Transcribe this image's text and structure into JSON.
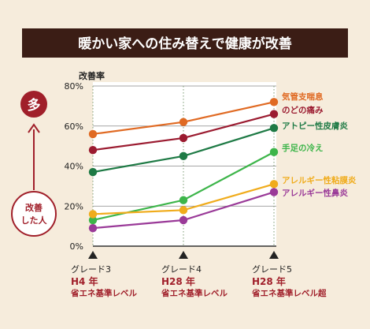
{
  "banner": {
    "title": "暖かい家への住み替えで健康が改善"
  },
  "side": {
    "top_label": "多",
    "bottom_label_1": "改善",
    "bottom_label_2": "した人"
  },
  "colors": {
    "banner_bg": "#3b1d15",
    "banner_text": "#ffffff",
    "side_accent": "#a01f2a",
    "background": "#f6ecdc",
    "plot_bg": "#ffffff",
    "label_red": "#a01f2a"
  },
  "chart_data": {
    "type": "line",
    "ylabel": "改善率",
    "ylim": [
      0,
      80
    ],
    "yticks": [
      "0%",
      "20%",
      "40%",
      "60%",
      "80%"
    ],
    "ytick_values": [
      0,
      20,
      40,
      60,
      80
    ],
    "grid": true,
    "categories": [
      {
        "grade": "グレード3",
        "year": "H4 年",
        "level": "省エネ基準レベル"
      },
      {
        "grade": "グレード4",
        "year": "H28 年",
        "level": "省エネ基準レベル"
      },
      {
        "grade": "グレード5",
        "year": "H28 年",
        "level": "省エネ基準レベル超"
      }
    ],
    "series": [
      {
        "name": "気管支喘息",
        "color": "#e06a23",
        "values": [
          56,
          62,
          72
        ]
      },
      {
        "name": "のどの痛み",
        "color": "#9b1b30",
        "values": [
          48,
          54,
          66
        ]
      },
      {
        "name": "アトピー性皮膚炎",
        "color": "#1e7a45",
        "values": [
          37,
          45,
          59
        ]
      },
      {
        "name": "手足の冷え",
        "color": "#3db54a",
        "values": [
          13,
          23,
          47
        ]
      },
      {
        "name": "アレルギー性粘膜炎",
        "color": "#f0ac1c",
        "values": [
          16,
          18,
          31
        ]
      },
      {
        "name": "アレルギー性鼻炎",
        "color": "#9a3a98",
        "values": [
          9,
          13,
          27
        ]
      }
    ]
  }
}
